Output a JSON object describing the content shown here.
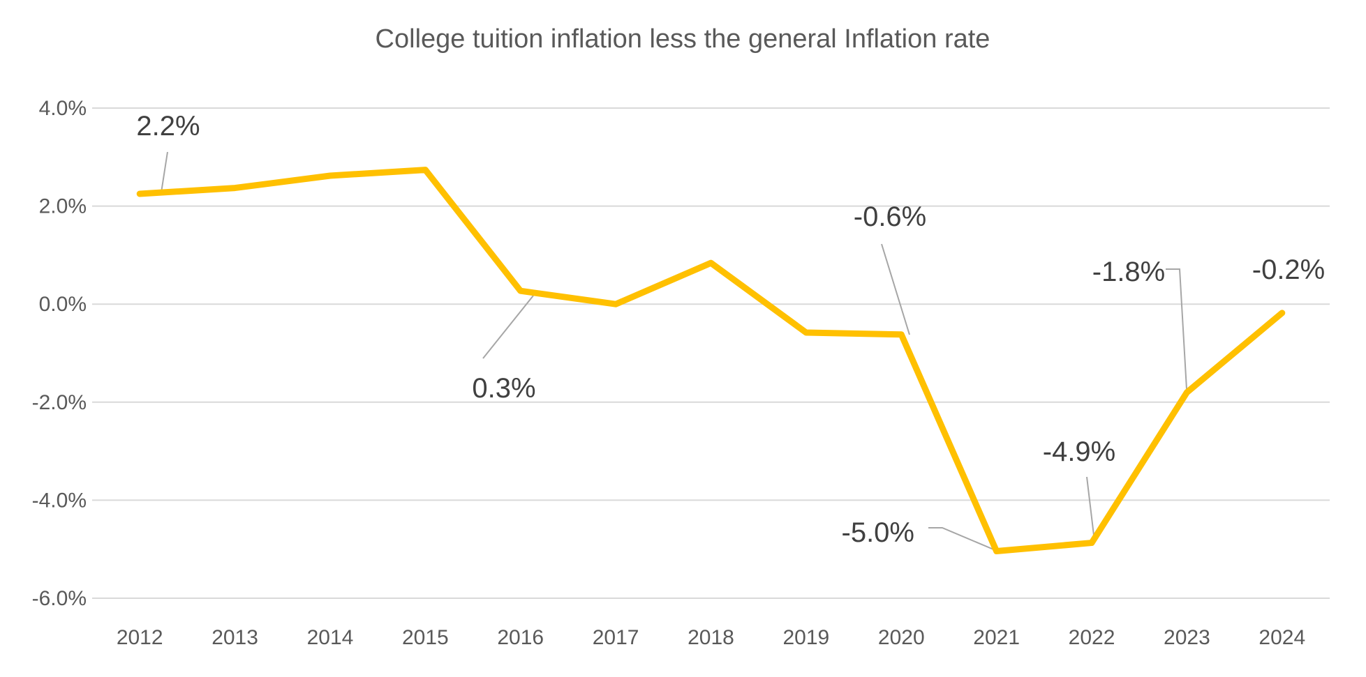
{
  "chart_data": {
    "type": "line",
    "title": "College tuition inflation less the general Inflation rate",
    "xlabel": "",
    "ylabel": "",
    "ylim": [
      -6.0,
      4.0
    ],
    "y_ticks": [
      "4.0%",
      "2.0%",
      "0.0%",
      "-2.0%",
      "-4.0%",
      "-6.0%"
    ],
    "y_tick_values": [
      4.0,
      2.0,
      0.0,
      -2.0,
      -4.0,
      -6.0
    ],
    "categories": [
      "2012",
      "2013",
      "2014",
      "2015",
      "2016",
      "2017",
      "2018",
      "2019",
      "2020",
      "2021",
      "2022",
      "2023",
      "2024"
    ],
    "series": [
      {
        "values": [
          2.25,
          2.37,
          2.62,
          2.74,
          0.27,
          0.0,
          0.84,
          -0.58,
          -0.62,
          -5.04,
          -4.87,
          -1.8,
          -0.18
        ],
        "color": "#FFC000"
      }
    ],
    "data_labels": [
      {
        "index": 0,
        "text": "2.2%"
      },
      {
        "index": 4,
        "text": "0.3%"
      },
      {
        "index": 8,
        "text": "-0.6%"
      },
      {
        "index": 9,
        "text": "-5.0%"
      },
      {
        "index": 10,
        "text": "-4.9%"
      },
      {
        "index": 11,
        "text": "-1.8%"
      },
      {
        "index": 12,
        "text": "-0.2%"
      }
    ],
    "grid": true,
    "legend": "none"
  }
}
